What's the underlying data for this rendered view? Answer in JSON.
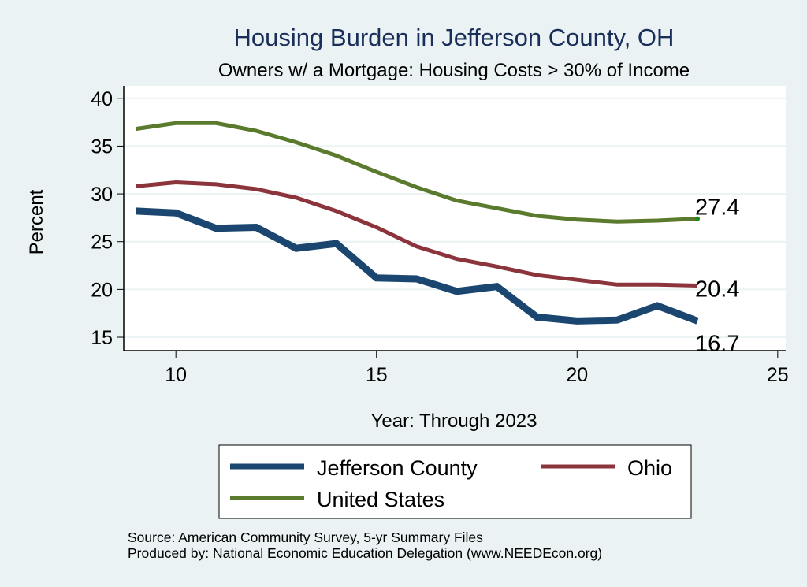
{
  "chart_data": {
    "type": "line",
    "title": "Housing Burden in Jefferson County, OH",
    "subtitle": "Owners w/ a Mortgage: Housing Costs > 30% of Income",
    "xlabel": "Year: Through 2023",
    "ylabel": "Percent",
    "xlim": [
      8.7,
      25.2
    ],
    "ylim": [
      13.6,
      41.3
    ],
    "xticks": [
      10,
      15,
      20,
      25
    ],
    "yticks": [
      15,
      20,
      25,
      30,
      35,
      40
    ],
    "grid": true,
    "x": [
      9,
      10,
      11,
      12,
      13,
      14,
      15,
      16,
      17,
      18,
      19,
      20,
      21,
      22,
      23
    ],
    "series": [
      {
        "name": "Jefferson County",
        "color": "#1a4670",
        "values": [
          28.2,
          28.0,
          26.4,
          26.5,
          24.3,
          24.8,
          21.2,
          21.1,
          19.8,
          20.3,
          17.1,
          16.7,
          16.8,
          18.3,
          16.7
        ],
        "end_label": "16.7"
      },
      {
        "name": "Ohio",
        "color": "#8c343c",
        "values": [
          30.8,
          31.2,
          31.0,
          30.5,
          29.6,
          28.2,
          26.5,
          24.5,
          23.2,
          22.4,
          21.5,
          21.0,
          20.5,
          20.5,
          20.4
        ],
        "end_label": "20.4"
      },
      {
        "name": "United States",
        "color": "#5a7a2e",
        "values": [
          36.8,
          37.4,
          37.4,
          36.6,
          35.4,
          34.0,
          32.3,
          30.7,
          29.3,
          28.5,
          27.7,
          27.3,
          27.1,
          27.2,
          27.4
        ],
        "end_label": "27.4"
      }
    ],
    "legend": {
      "position": "bottom",
      "entries": [
        "Jefferson County",
        "Ohio",
        "United States"
      ]
    },
    "notes": [
      "Source: American Community Survey, 5-yr Summary Files",
      "Produced by: National Economic Education Delegation (www.NEEDEcon.org)"
    ]
  },
  "colors": {
    "background": "#eaf2f3",
    "plot_background": "#ffffff",
    "grid": "#eaf2f3",
    "title": "#1a2e5a",
    "us_end_marker": "#1a8a1a"
  }
}
